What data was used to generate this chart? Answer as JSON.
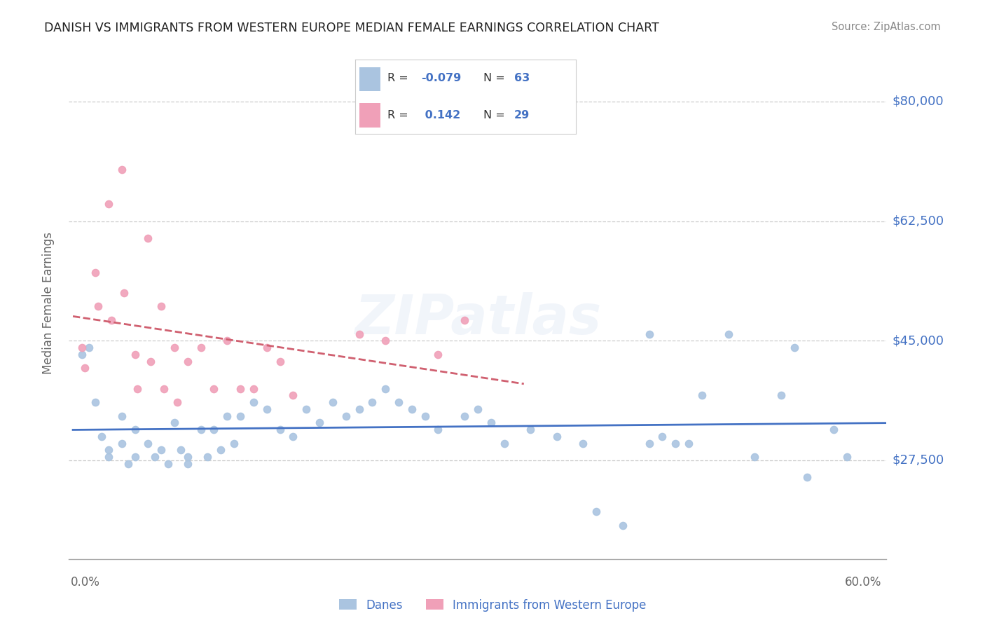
{
  "title": "DANISH VS IMMIGRANTS FROM WESTERN EUROPE MEDIAN FEMALE EARNINGS CORRELATION CHART",
  "source": "Source: ZipAtlas.com",
  "ylabel": "Median Female Earnings",
  "yticks": [
    27500,
    45000,
    62500,
    80000
  ],
  "ytick_labels": [
    "$27,500",
    "$45,000",
    "$62,500",
    "$80,000"
  ],
  "xlim": [
    0.0,
    0.62
  ],
  "ylim": [
    13000,
    88000
  ],
  "legend_R1": "-0.079",
  "legend_N1": "63",
  "legend_R2": "0.142",
  "legend_N2": "29",
  "label1": "Danes",
  "label2": "Immigrants from Western Europe",
  "color1": "#aac4e0",
  "color2": "#f0a0b8",
  "trendline1_color": "#4472c4",
  "trendline2_color": "#d06070",
  "background_color": "#ffffff",
  "watermark": "ZIPatlas",
  "danes_x": [
    0.01,
    0.015,
    0.02,
    0.025,
    0.03,
    0.03,
    0.04,
    0.04,
    0.045,
    0.05,
    0.05,
    0.06,
    0.065,
    0.07,
    0.075,
    0.08,
    0.085,
    0.09,
    0.09,
    0.1,
    0.105,
    0.11,
    0.115,
    0.12,
    0.125,
    0.13,
    0.14,
    0.15,
    0.16,
    0.17,
    0.18,
    0.19,
    0.2,
    0.21,
    0.22,
    0.23,
    0.24,
    0.25,
    0.26,
    0.27,
    0.28,
    0.3,
    0.31,
    0.32,
    0.33,
    0.35,
    0.37,
    0.39,
    0.4,
    0.42,
    0.44,
    0.45,
    0.46,
    0.48,
    0.5,
    0.52,
    0.54,
    0.56,
    0.58,
    0.59,
    0.47,
    0.55,
    0.44
  ],
  "danes_y": [
    43000,
    44000,
    36000,
    31000,
    29000,
    28000,
    34000,
    30000,
    27000,
    32000,
    28000,
    30000,
    28000,
    29000,
    27000,
    33000,
    29000,
    28000,
    27000,
    32000,
    28000,
    32000,
    29000,
    34000,
    30000,
    34000,
    36000,
    35000,
    32000,
    31000,
    35000,
    33000,
    36000,
    34000,
    35000,
    36000,
    38000,
    36000,
    35000,
    34000,
    32000,
    34000,
    35000,
    33000,
    30000,
    32000,
    31000,
    30000,
    20000,
    18000,
    30000,
    31000,
    30000,
    37000,
    46000,
    28000,
    37000,
    25000,
    32000,
    28000,
    30000,
    44000,
    46000
  ],
  "immigrants_x": [
    0.01,
    0.012,
    0.02,
    0.022,
    0.03,
    0.032,
    0.04,
    0.042,
    0.05,
    0.052,
    0.06,
    0.062,
    0.07,
    0.072,
    0.08,
    0.082,
    0.09,
    0.1,
    0.11,
    0.12,
    0.13,
    0.14,
    0.15,
    0.16,
    0.17,
    0.22,
    0.24,
    0.28,
    0.3
  ],
  "immigrants_y": [
    44000,
    41000,
    55000,
    50000,
    65000,
    48000,
    70000,
    52000,
    43000,
    38000,
    60000,
    42000,
    50000,
    38000,
    44000,
    36000,
    42000,
    44000,
    38000,
    45000,
    38000,
    38000,
    44000,
    42000,
    37000,
    46000,
    45000,
    43000,
    48000
  ]
}
